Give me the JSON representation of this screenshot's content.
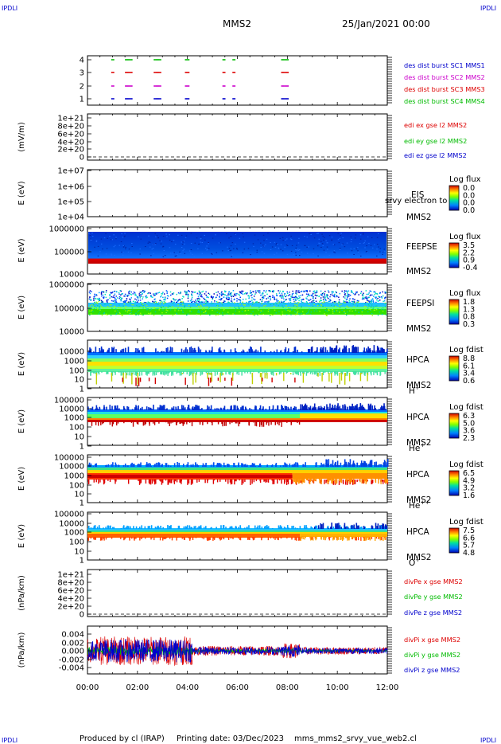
{
  "header": {
    "corner_tl": "IPDLI",
    "corner_tr": "IPDLI",
    "corner_bl": "IPDLI",
    "corner_br": "IPDLI",
    "spacecraft": "MMS2",
    "date": "25/Jan/2021 00:00"
  },
  "footer": {
    "producer": "Produced by cl (IRAP)",
    "printing": "Printing date: 03/Dec/2023",
    "script": "mms_mms2_srvy_vue_web2.cl"
  },
  "colors": {
    "blue": "#0000cc",
    "red": "#dd0000",
    "green": "#00bb00",
    "magenta": "#cc00cc"
  },
  "chart_data": [
    {
      "id": "burst",
      "type": "scatter",
      "yticks": [
        "1",
        "2",
        "3",
        "4"
      ],
      "xlim": [
        "00:00",
        "12:00"
      ],
      "legend": [
        {
          "label": "des dist burst SC1 MMS1",
          "color": "#0000cc"
        },
        {
          "label": "des dist burst SC2 MMS2",
          "color": "#cc00cc"
        },
        {
          "label": "des dist burst SC3 MMS3",
          "color": "#dd0000"
        },
        {
          "label": "des dist burst SC4 MMS4",
          "color": "#00bb00"
        }
      ],
      "series": [
        {
          "level": 4,
          "color": "#00bb00",
          "segments": [
            [
              0.95,
              1.05
            ],
            [
              1.5,
              1.75
            ],
            [
              2.65,
              2.95
            ],
            [
              3.9,
              4.05
            ],
            [
              5.4,
              5.5
            ],
            [
              5.8,
              5.9
            ],
            [
              7.75,
              8.0
            ]
          ]
        },
        {
          "level": 3,
          "color": "#dd0000",
          "segments": [
            [
              0.95,
              1.05
            ],
            [
              1.5,
              1.75
            ],
            [
              2.65,
              2.95
            ],
            [
              3.9,
              4.05
            ],
            [
              5.4,
              5.5
            ],
            [
              5.8,
              5.9
            ],
            [
              7.75,
              8.0
            ]
          ]
        },
        {
          "level": 2,
          "color": "#cc00cc",
          "segments": [
            [
              0.95,
              1.05
            ],
            [
              1.5,
              1.75
            ],
            [
              2.65,
              2.95
            ],
            [
              3.9,
              4.05
            ],
            [
              5.4,
              5.5
            ],
            [
              5.8,
              5.9
            ],
            [
              7.75,
              8.0
            ]
          ]
        },
        {
          "level": 1,
          "color": "#0000cc",
          "segments": [
            [
              0.95,
              1.05
            ],
            [
              1.5,
              1.75
            ],
            [
              2.65,
              2.95
            ],
            [
              3.9,
              4.05
            ],
            [
              5.4,
              5.5
            ],
            [
              5.8,
              5.9
            ],
            [
              7.75,
              8.0
            ]
          ]
        }
      ]
    },
    {
      "id": "edi",
      "type": "line",
      "ylabel": "(mV/m)",
      "yticks": [
        "1e+21",
        "8e+20",
        "6e+20",
        "4e+20",
        "2e+20",
        "0"
      ],
      "legend": [
        {
          "label": "edi ex gse l2 MMS2",
          "color": "#dd0000"
        },
        {
          "label": "edi ey gse l2 MMS2",
          "color": "#00bb00"
        },
        {
          "label": "edi ez gse l2 MMS2",
          "color": "#0000cc"
        }
      ]
    },
    {
      "id": "eis",
      "type": "heatmap",
      "ylabel": "E (eV)",
      "yscale": "log",
      "yticks": [
        "1e+07",
        "1e+06",
        "1e+05",
        "1e+04"
      ],
      "instrument": "EIS",
      "species": "srvy electron to",
      "sc": "MMS2",
      "colorbar_title": "Log flux",
      "colorbar_ticks": [
        "0.0",
        "0.0",
        "0.0",
        "0.0"
      ]
    },
    {
      "id": "feepse",
      "type": "heatmap",
      "ylabel": "E (eV)",
      "yscale": "log",
      "yticks": [
        "1000000",
        "100000",
        "10000"
      ],
      "instrument": "FEEPSE",
      "sc": "MMS2",
      "colorbar_title": "Log flux",
      "colorbar_ticks": [
        "3.5",
        "2.2",
        "0.9",
        "-0.4"
      ]
    },
    {
      "id": "feepsi",
      "type": "heatmap",
      "ylabel": "E (eV)",
      "yscale": "log",
      "yticks": [
        "1000000",
        "100000",
        "10000"
      ],
      "instrument": "FEEPSI",
      "sc": "MMS2",
      "colorbar_title": "Log flux",
      "colorbar_ticks": [
        "1.8",
        "1.3",
        "0.8",
        "0.3"
      ]
    },
    {
      "id": "hpca_h",
      "type": "heatmap",
      "ylabel": "E (eV)",
      "yscale": "log",
      "yticks": [
        "10000",
        "1000",
        "100",
        "10",
        "1"
      ],
      "instrument": "HPCA",
      "sc": "MMS2",
      "ion": "H",
      "ion_sup": "+",
      "colorbar_title": "Log fdist",
      "colorbar_ticks": [
        "8.8",
        "6.1",
        "3.4",
        "0.6"
      ]
    },
    {
      "id": "hpca_he",
      "type": "heatmap",
      "ylabel": "E (eV)",
      "yscale": "log",
      "yticks": [
        "100000",
        "10000",
        "1000",
        "100",
        "10",
        "1"
      ],
      "instrument": "HPCA",
      "sc": "MMS2",
      "ion": "He",
      "ion_sup": "+",
      "colorbar_title": "Log fdist",
      "colorbar_ticks": [
        "6.3",
        "5.0",
        "3.6",
        "2.3"
      ]
    },
    {
      "id": "hpca_hepp",
      "type": "heatmap",
      "ylabel": "E (eV)",
      "yscale": "log",
      "yticks": [
        "100000",
        "10000",
        "1000",
        "100",
        "10",
        "1"
      ],
      "instrument": "HPCA",
      "sc": "MMS2",
      "ion": "He",
      "ion_sup": "++",
      "colorbar_title": "Log fdist",
      "colorbar_ticks": [
        "6.5",
        "4.9",
        "3.2",
        "1.6"
      ]
    },
    {
      "id": "hpca_o",
      "type": "heatmap",
      "ylabel": "E (eV)",
      "yscale": "log",
      "yticks": [
        "100000",
        "10000",
        "1000",
        "100",
        "10",
        "1"
      ],
      "instrument": "HPCA",
      "sc": "MMS2",
      "ion": "O",
      "ion_sup": "+",
      "colorbar_title": "Log fdist",
      "colorbar_ticks": [
        "7.5",
        "6.6",
        "5.7",
        "4.8"
      ]
    },
    {
      "id": "divpe",
      "type": "line",
      "ylabel": "(nPa/km)",
      "yticks": [
        "1e+21",
        "8e+20",
        "6e+20",
        "4e+20",
        "2e+20",
        "0"
      ],
      "legend": [
        {
          "label": "divPe x gse MMS2",
          "color": "#dd0000"
        },
        {
          "label": "divPe y gse MMS2",
          "color": "#00bb00"
        },
        {
          "label": "divPe z gse MMS2",
          "color": "#0000cc"
        }
      ]
    },
    {
      "id": "divpi",
      "type": "line",
      "ylabel": "(nPa/km)",
      "yticks": [
        "0.004",
        "0.002",
        "0.000",
        "-0.002",
        "-0.004"
      ],
      "ylim": [
        -0.005,
        0.005
      ],
      "legend": [
        {
          "label": "divPi x gse MMS2",
          "color": "#dd0000"
        },
        {
          "label": "divPi y gse MMS2",
          "color": "#00bb00"
        },
        {
          "label": "divPi z gse MMS2",
          "color": "#0000cc"
        }
      ],
      "xticks": [
        "00:00",
        "02:00",
        "04:00",
        "06:00",
        "08:00",
        "10:00",
        "12:00"
      ]
    }
  ]
}
